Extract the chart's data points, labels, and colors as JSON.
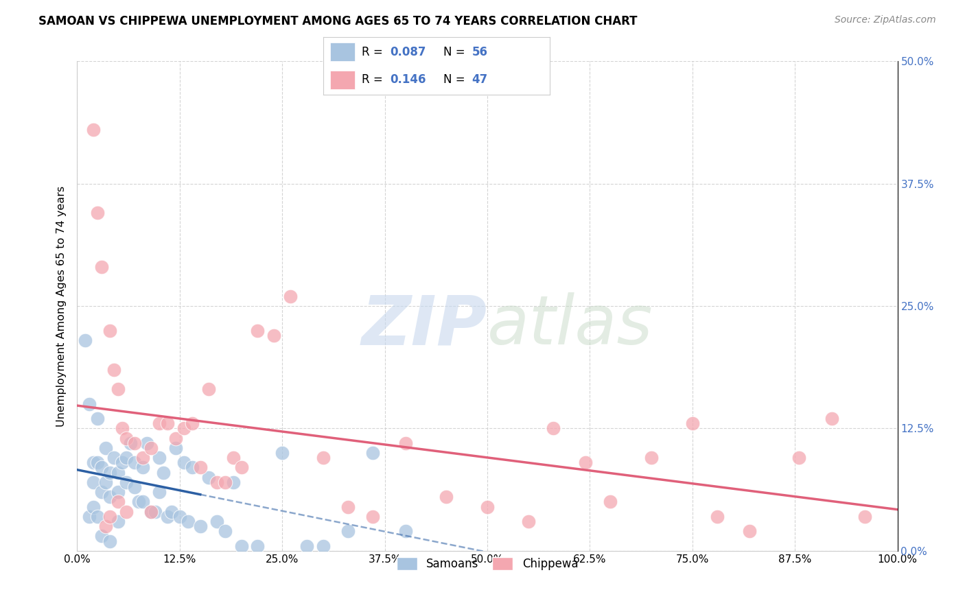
{
  "title": "SAMOAN VS CHIPPEWA UNEMPLOYMENT AMONG AGES 65 TO 74 YEARS CORRELATION CHART",
  "source": "Source: ZipAtlas.com",
  "ylabel": "Unemployment Among Ages 65 to 74 years",
  "xlabel_vals": [
    0,
    12.5,
    25.0,
    37.5,
    50.0,
    62.5,
    75.0,
    87.5,
    100.0
  ],
  "ylabel_vals": [
    0,
    12.5,
    25.0,
    37.5,
    50.0
  ],
  "xlim": [
    0,
    100
  ],
  "ylim": [
    0,
    50
  ],
  "samoans_R": 0.087,
  "samoans_N": 56,
  "chippewa_R": 0.146,
  "chippewa_N": 47,
  "samoans_color": "#a8c4e0",
  "chippewa_color": "#f4a7b0",
  "samoans_line_color": "#2c5fa3",
  "chippewa_line_color": "#e0607a",
  "samoans_x": [
    1.0,
    1.5,
    2.0,
    2.0,
    2.5,
    2.5,
    3.0,
    3.0,
    3.5,
    3.5,
    4.0,
    4.0,
    4.5,
    5.0,
    5.0,
    5.5,
    6.0,
    6.0,
    6.5,
    7.0,
    7.0,
    7.5,
    8.0,
    8.0,
    8.5,
    9.0,
    9.5,
    10.0,
    10.0,
    10.5,
    11.0,
    11.5,
    12.0,
    12.5,
    13.0,
    13.5,
    14.0,
    15.0,
    16.0,
    17.0,
    18.0,
    19.0,
    20.0,
    22.0,
    25.0,
    28.0,
    30.0,
    33.0,
    36.0,
    40.0,
    1.5,
    2.0,
    2.5,
    3.0,
    4.0,
    5.0
  ],
  "samoans_y": [
    21.5,
    15.0,
    9.0,
    7.0,
    13.5,
    9.0,
    8.5,
    6.0,
    10.5,
    7.0,
    8.0,
    5.5,
    9.5,
    8.0,
    6.0,
    9.0,
    9.5,
    7.0,
    11.0,
    9.0,
    6.5,
    5.0,
    8.5,
    5.0,
    11.0,
    4.0,
    4.0,
    6.0,
    9.5,
    8.0,
    3.5,
    4.0,
    10.5,
    3.5,
    9.0,
    3.0,
    8.5,
    2.5,
    7.5,
    3.0,
    2.0,
    7.0,
    0.5,
    0.5,
    10.0,
    0.5,
    0.5,
    2.0,
    10.0,
    2.0,
    3.5,
    4.5,
    3.5,
    1.5,
    1.0,
    3.0
  ],
  "chippewa_x": [
    2.0,
    2.5,
    3.0,
    4.0,
    4.5,
    5.0,
    5.5,
    6.0,
    7.0,
    8.0,
    9.0,
    10.0,
    11.0,
    12.0,
    13.0,
    14.0,
    15.0,
    16.0,
    17.0,
    18.0,
    19.0,
    20.0,
    22.0,
    24.0,
    26.0,
    30.0,
    33.0,
    36.0,
    40.0,
    45.0,
    50.0,
    55.0,
    58.0,
    62.0,
    65.0,
    70.0,
    75.0,
    78.0,
    82.0,
    88.0,
    92.0,
    96.0,
    3.5,
    4.0,
    5.0,
    6.0,
    9.0
  ],
  "chippewa_y": [
    43.0,
    34.5,
    29.0,
    22.5,
    18.5,
    16.5,
    12.5,
    11.5,
    11.0,
    9.5,
    10.5,
    13.0,
    13.0,
    11.5,
    12.5,
    13.0,
    8.5,
    16.5,
    7.0,
    7.0,
    9.5,
    8.5,
    22.5,
    22.0,
    26.0,
    9.5,
    4.5,
    3.5,
    11.0,
    5.5,
    4.5,
    3.0,
    12.5,
    9.0,
    5.0,
    9.5,
    13.0,
    3.5,
    2.0,
    9.5,
    13.5,
    3.5,
    2.5,
    3.5,
    5.0,
    4.0,
    4.0
  ],
  "watermark_zip": "ZIP",
  "watermark_atlas": "atlas",
  "background_color": "#ffffff",
  "grid_color": "#d0d0d0",
  "legend_R_color": "#4472c4",
  "right_tick_color": "#4472c4",
  "samoans_x_line_end": 15.0
}
